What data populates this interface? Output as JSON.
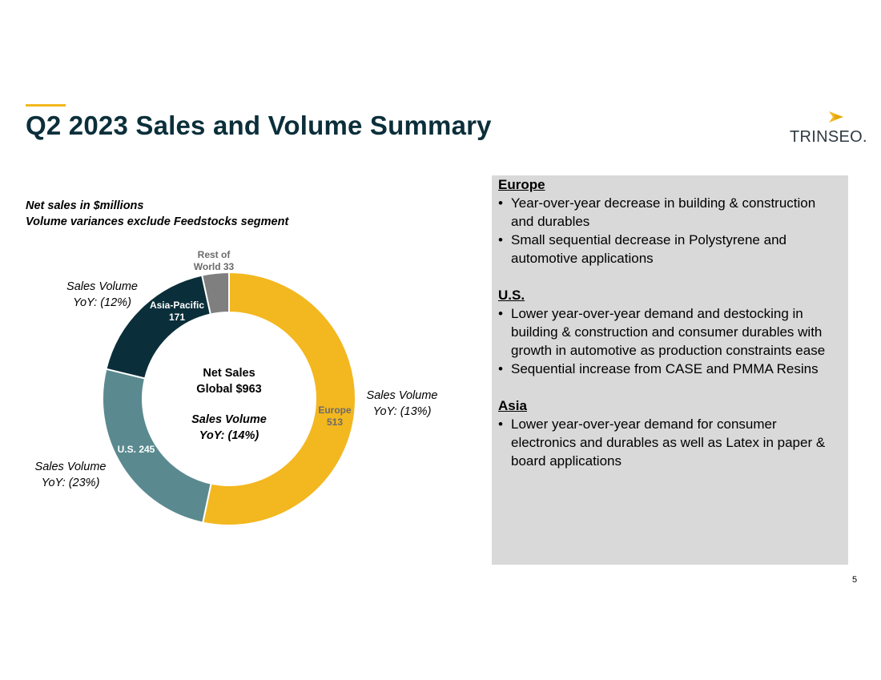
{
  "page": {
    "title": "Q2 2023 Sales and Volume Summary",
    "page_number": "5"
  },
  "logo": {
    "text": "TRINSEO.",
    "accent": "#F3B71F"
  },
  "subtitle": {
    "line1": "Net sales in $millions",
    "line2": "Volume variances exclude Feedstocks segment"
  },
  "chart_data": {
    "type": "pie",
    "variant": "donut",
    "unit": "$millions",
    "center_label": {
      "line1": "Net Sales",
      "line2": "Global $963",
      "line3": "Sales Volume",
      "line4": "YoY: (14%)"
    },
    "slices": [
      {
        "name": "Europe",
        "value": 513,
        "label_line1": "Europe",
        "label_line2": "513",
        "color": "#F3B71F",
        "label_color": "#6B6B6B",
        "yoy_line1": "Sales Volume",
        "yoy_line2": "YoY: (13%)"
      },
      {
        "name": "U.S.",
        "value": 245,
        "label_line1": "U.S. 245",
        "label_line2": "",
        "color": "#5A8A8F",
        "label_color": "#FFFFFF",
        "yoy_line1": "Sales Volume",
        "yoy_line2": "YoY: (23%)"
      },
      {
        "name": "Asia-Pacific",
        "value": 171,
        "label_line1": "Asia-Pacific",
        "label_line2": "171",
        "color": "#0B2F3A",
        "label_color": "#FFFFFF",
        "yoy_line1": "Sales Volume",
        "yoy_line2": "YoY: (12%)"
      },
      {
        "name": "Rest of World",
        "value": 33,
        "label_line1": "Rest of",
        "label_line2": "World 33",
        "color": "#7F7F7F",
        "label_color": "#6B6B6B",
        "yoy_line1": "",
        "yoy_line2": ""
      }
    ]
  },
  "panel": {
    "background": "#D9D9D9",
    "regions": [
      {
        "heading": "Europe",
        "bullets": [
          "Year-over-year decrease in building & construction and durables",
          "Small sequential decrease in Polystyrene and automotive applications"
        ]
      },
      {
        "heading": "U.S.",
        "bullets": [
          "Lower year-over-year demand and destocking in building & construction and consumer durables with growth in automotive as production constraints ease",
          "Sequential increase from CASE and PMMA Resins"
        ]
      },
      {
        "heading": "Asia",
        "bullets": [
          "Lower year-over-year demand for consumer electronics and durables as well as Latex in paper & board applications"
        ]
      }
    ]
  }
}
